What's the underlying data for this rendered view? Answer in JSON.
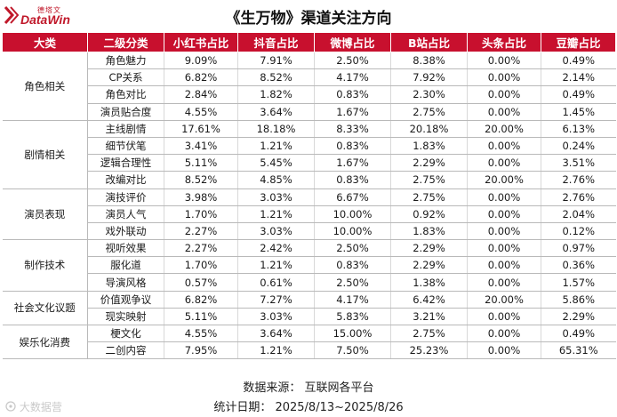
{
  "brand": {
    "name_cn": "德塔文",
    "name_en": "DataWin"
  },
  "title": "《生万物》渠道关注方向",
  "headers": [
    "大类",
    "二级分类",
    "小红书占比",
    "抖音占比",
    "微博占比",
    "B站占比",
    "头条占比",
    "豆瓣占比"
  ],
  "groups": [
    {
      "category": "角色相关",
      "rows": [
        {
          "sub": "角色魅力",
          "values": [
            "9.09%",
            "7.91%",
            "2.50%",
            "8.38%",
            "0.00%",
            "0.49%"
          ]
        },
        {
          "sub": "CP关系",
          "values": [
            "6.82%",
            "8.52%",
            "4.17%",
            "7.92%",
            "0.00%",
            "2.14%"
          ]
        },
        {
          "sub": "角色对比",
          "values": [
            "2.84%",
            "1.82%",
            "0.83%",
            "2.30%",
            "0.00%",
            "0.49%"
          ]
        },
        {
          "sub": "演员贴合度",
          "values": [
            "4.55%",
            "3.64%",
            "1.67%",
            "2.75%",
            "0.00%",
            "1.45%"
          ]
        }
      ]
    },
    {
      "category": "剧情相关",
      "rows": [
        {
          "sub": "主线剧情",
          "values": [
            "17.61%",
            "18.18%",
            "8.33%",
            "20.18%",
            "20.00%",
            "6.13%"
          ]
        },
        {
          "sub": "细节伏笔",
          "values": [
            "3.41%",
            "1.21%",
            "0.83%",
            "1.83%",
            "0.00%",
            "0.24%"
          ]
        },
        {
          "sub": "逻辑合理性",
          "values": [
            "5.11%",
            "5.45%",
            "1.67%",
            "2.29%",
            "0.00%",
            "3.51%"
          ]
        },
        {
          "sub": "改编对比",
          "values": [
            "8.52%",
            "4.85%",
            "0.83%",
            "2.75%",
            "20.00%",
            "2.76%"
          ]
        }
      ]
    },
    {
      "category": "演员表现",
      "rows": [
        {
          "sub": "演技评价",
          "values": [
            "3.98%",
            "3.03%",
            "6.67%",
            "2.75%",
            "0.00%",
            "2.76%"
          ]
        },
        {
          "sub": "演员人气",
          "values": [
            "1.70%",
            "1.21%",
            "10.00%",
            "0.92%",
            "0.00%",
            "2.04%"
          ]
        },
        {
          "sub": "戏外联动",
          "values": [
            "2.27%",
            "3.03%",
            "10.00%",
            "1.83%",
            "0.00%",
            "0.12%"
          ]
        }
      ]
    },
    {
      "category": "制作技术",
      "rows": [
        {
          "sub": "视听效果",
          "values": [
            "2.27%",
            "2.42%",
            "2.50%",
            "2.29%",
            "0.00%",
            "0.97%"
          ]
        },
        {
          "sub": "服化道",
          "values": [
            "1.70%",
            "1.21%",
            "0.83%",
            "2.29%",
            "0.00%",
            "0.36%"
          ]
        },
        {
          "sub": "导演风格",
          "values": [
            "0.57%",
            "0.61%",
            "2.50%",
            "1.38%",
            "0.00%",
            "1.57%"
          ]
        }
      ]
    },
    {
      "category": "社会文化议题",
      "rows": [
        {
          "sub": "价值观争议",
          "values": [
            "6.82%",
            "7.27%",
            "4.17%",
            "6.42%",
            "20.00%",
            "5.86%"
          ]
        },
        {
          "sub": "现实映射",
          "values": [
            "5.11%",
            "3.03%",
            "5.83%",
            "3.21%",
            "0.00%",
            "2.29%"
          ]
        }
      ]
    },
    {
      "category": "娱乐化消费",
      "rows": [
        {
          "sub": "梗文化",
          "values": [
            "4.55%",
            "3.64%",
            "15.00%",
            "2.75%",
            "0.00%",
            "0.49%"
          ]
        },
        {
          "sub": "二创内容",
          "values": [
            "7.95%",
            "1.21%",
            "7.50%",
            "25.23%",
            "0.00%",
            "65.31%"
          ]
        }
      ]
    }
  ],
  "footer": {
    "source": "数据来源：  互联网各平台",
    "date": "统计日期：  2025/8/13~2025/8/26"
  },
  "watermark": "大数据营",
  "colors": {
    "header_bg": "#c8102e",
    "brand": "#c0182a"
  }
}
